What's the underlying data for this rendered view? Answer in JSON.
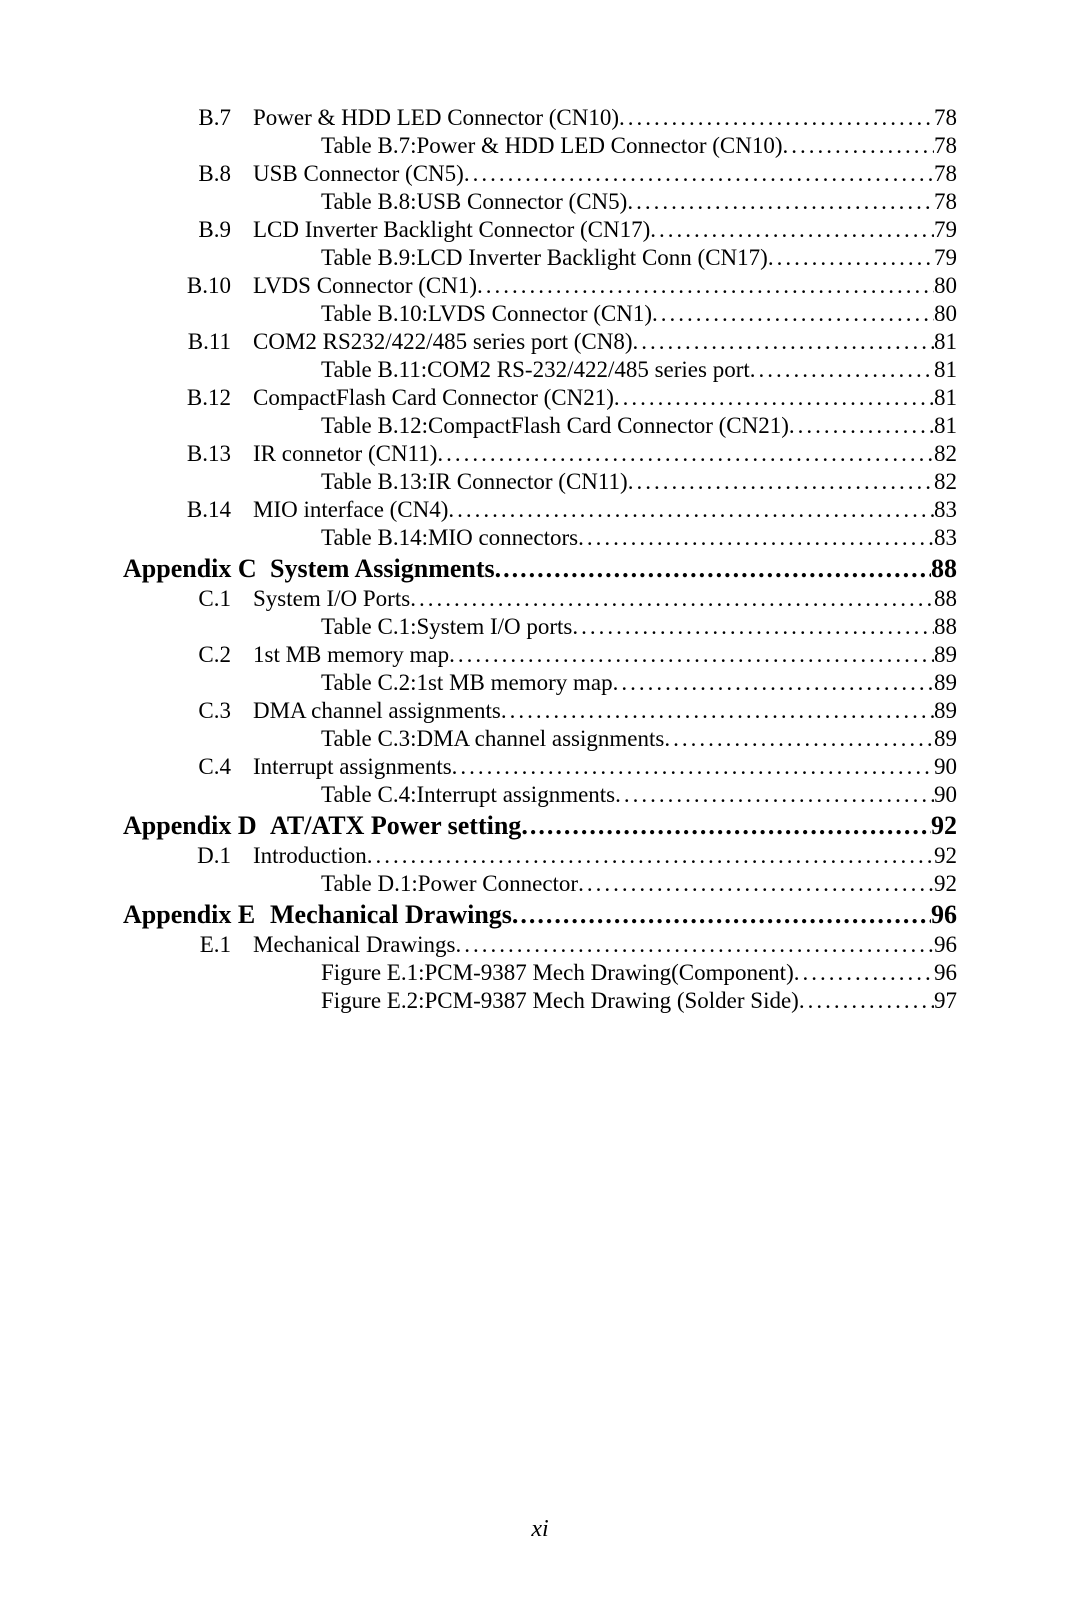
{
  "entries": [
    {
      "type": "section",
      "num": "B.7",
      "title": "Power & HDD LED Connector (CN10)",
      "page": "78"
    },
    {
      "type": "table",
      "title": "Table B.7:Power & HDD LED Connector (CN10)",
      "page": "78"
    },
    {
      "type": "section",
      "num": "B.8",
      "title": "USB Connector (CN5)",
      "page": "78"
    },
    {
      "type": "table",
      "title": "Table B.8:USB Connector (CN5)",
      "page": "78"
    },
    {
      "type": "section",
      "num": "B.9",
      "title": "LCD Inverter Backlight Connector (CN17)",
      "page": "79"
    },
    {
      "type": "table",
      "title": "Table B.9:LCD Inverter Backlight Conn (CN17)",
      "page": "79"
    },
    {
      "type": "section",
      "num": "B.10",
      "title": "LVDS Connector (CN1)",
      "page": "80"
    },
    {
      "type": "table",
      "title": "Table B.10:LVDS Connector (CN1)",
      "page": "80"
    },
    {
      "type": "section",
      "num": "B.11",
      "title": "COM2 RS232/422/485  series port (CN8)",
      "page": "81"
    },
    {
      "type": "table",
      "title": "Table B.11:COM2 RS-232/422/485 series port",
      "page": "81"
    },
    {
      "type": "section",
      "num": "B.12",
      "title": "CompactFlash Card Connector (CN21) ",
      "page": "81"
    },
    {
      "type": "table",
      "title": "Table B.12:CompactFlash Card Connector (CN21)",
      "page": "81"
    },
    {
      "type": "section",
      "num": "B.13",
      "title": "IR connetor  (CN11)",
      "page": "82"
    },
    {
      "type": "table",
      "title": "Table B.13:IR Connector (CN11)",
      "page": "82"
    },
    {
      "type": "section",
      "num": "B.14",
      "title": "MIO interface   (CN4)",
      "page": "83"
    },
    {
      "type": "table",
      "title": "Table B.14:MIO connectors",
      "page": "83"
    },
    {
      "type": "appendix",
      "num": "Appendix  C",
      "title": "System Assignments",
      "page": "88"
    },
    {
      "type": "section",
      "num": "C.1",
      "title": "System I/O Ports",
      "page": "88"
    },
    {
      "type": "table",
      "title": "Table C.1:System I/O ports",
      "page": "88"
    },
    {
      "type": "section",
      "num": "C.2",
      "title": "1st MB memory map",
      "page": "89"
    },
    {
      "type": "table",
      "title": "Table C.2:1st MB memory map",
      "page": "89"
    },
    {
      "type": "section",
      "num": "C.3",
      "title": "DMA channel assignments",
      "page": "89"
    },
    {
      "type": "table",
      "title": "Table C.3:DMA channel assignments",
      "page": "89"
    },
    {
      "type": "section",
      "num": "C.4",
      "title": "Interrupt assignments",
      "page": "90"
    },
    {
      "type": "table",
      "title": "Table C.4:Interrupt assignments",
      "page": "90"
    },
    {
      "type": "appendix",
      "num": "Appendix  D",
      "title": "AT/ATX Power setting",
      "page": "92"
    },
    {
      "type": "section",
      "num": "D.1",
      "title": "Introduction",
      "page": "92"
    },
    {
      "type": "table",
      "title": "Table D.1:Power Connector",
      "page": "92"
    },
    {
      "type": "appendix",
      "num": "Appendix  E",
      "title": "Mechanical Drawings",
      "page": "96"
    },
    {
      "type": "section",
      "num": "E.1",
      "title": "Mechanical Drawings",
      "page": "96"
    },
    {
      "type": "table",
      "title": "Figure E.1:PCM-9387 Mech Drawing(Component)",
      "page": "96"
    },
    {
      "type": "table",
      "title": "Figure E.2:PCM-9387 Mech Drawing (Solder Side)",
      "page": "97"
    }
  ],
  "footer": "xi"
}
